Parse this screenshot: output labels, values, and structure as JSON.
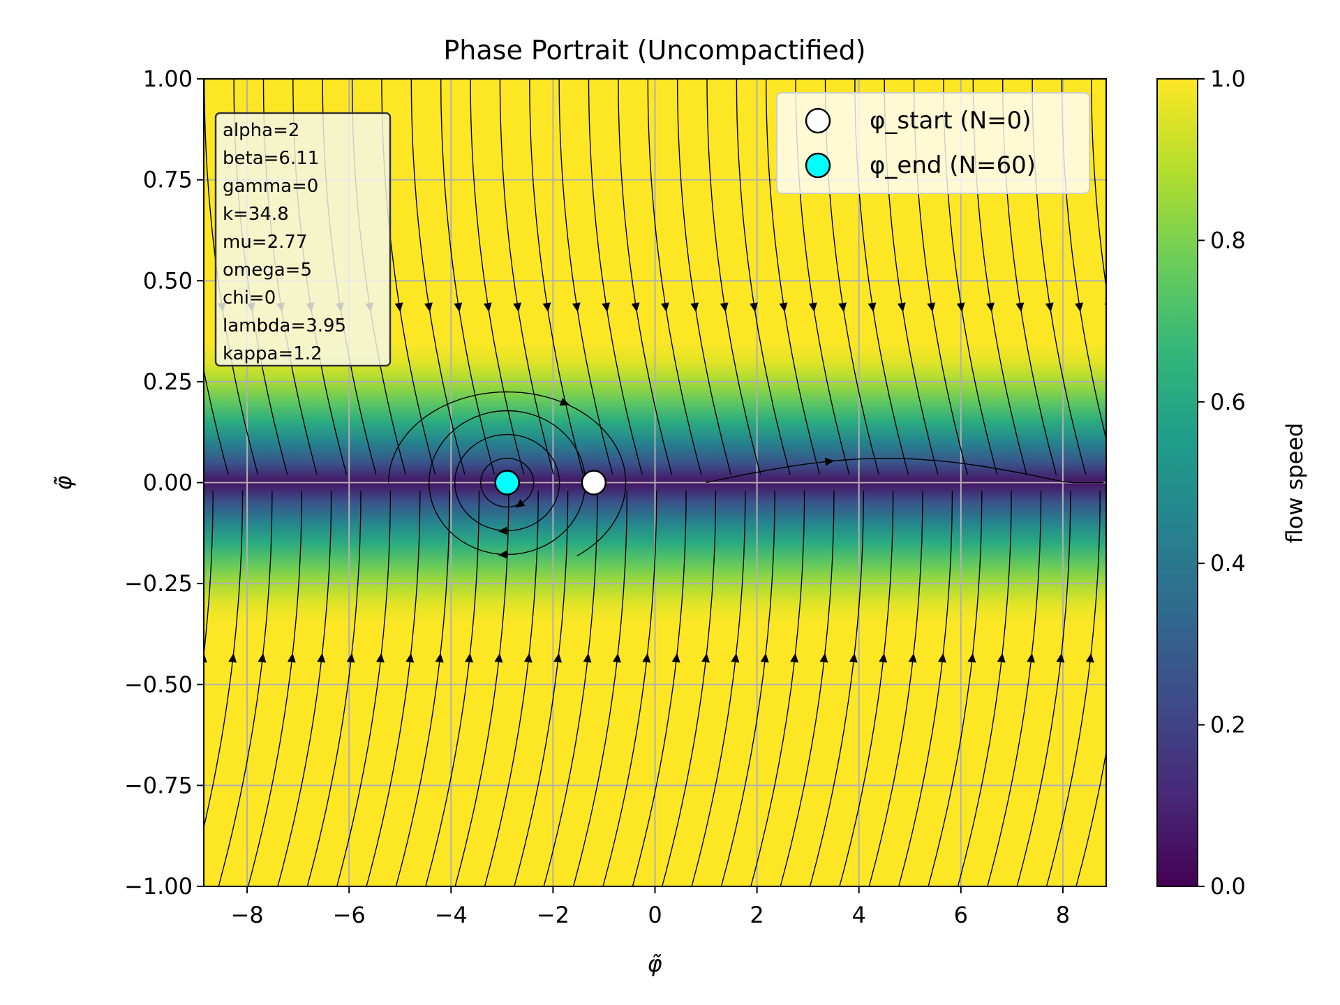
{
  "colors": {
    "background": "#ffffff",
    "grid": "#b0b0b0",
    "streamline": "#000000",
    "colormap": [
      "#440154",
      "#482878",
      "#3e4989",
      "#31688e",
      "#26828e",
      "#1f9e89",
      "#35b779",
      "#6ece58",
      "#b5de2b",
      "#fde725"
    ],
    "params_box_bg": "#f4f8ef",
    "params_box_edge": "#333333",
    "start_marker_fill": "#ffffff",
    "end_marker_fill": "#00ffff"
  },
  "chart_data": {
    "type": "streamplot",
    "title": "Phase Portrait (Uncompactified)",
    "xlabel": "φ̃",
    "ylabel": "φ̃̇",
    "xlim": [
      -8.85,
      8.85
    ],
    "ylim": [
      -1.0,
      1.0
    ],
    "x_ticks": [
      -8,
      -6,
      -4,
      -2,
      0,
      2,
      4,
      6,
      8
    ],
    "x_tick_labels": [
      "−8",
      "−6",
      "−4",
      "−2",
      "0",
      "2",
      "4",
      "6",
      "8"
    ],
    "y_ticks": [
      -1.0,
      -0.75,
      -0.5,
      -0.25,
      0.0,
      0.25,
      0.5,
      0.75,
      1.0
    ],
    "y_tick_labels": [
      "−1.00",
      "−0.75",
      "−0.50",
      "−0.25",
      "0.00",
      "0.25",
      "0.50",
      "0.75",
      "1.00"
    ],
    "grid": true,
    "colorbar": {
      "label": "flow speed",
      "range": [
        0.0,
        1.0
      ],
      "ticks": [
        0.0,
        0.2,
        0.4,
        0.6,
        0.8,
        1.0
      ],
      "tick_labels": [
        "0.0",
        "0.2",
        "0.4",
        "0.6",
        "0.8",
        "1.0"
      ]
    },
    "parameters": [
      "alpha=2",
      "beta=6.11",
      "gamma=0",
      "k=34.8",
      "mu=2.77",
      "omega=5",
      "chi=0",
      "lambda=3.95",
      "kappa=1.2"
    ],
    "legend": {
      "position": "upper right",
      "entries": [
        {
          "label": "φ_start (N=0)",
          "marker": "start"
        },
        {
          "label": "φ_end (N=60)",
          "marker": "end"
        }
      ]
    },
    "points": {
      "start": {
        "x": -1.2,
        "y": 0.0
      },
      "end": {
        "x": -2.9,
        "y": 0.0
      }
    }
  }
}
